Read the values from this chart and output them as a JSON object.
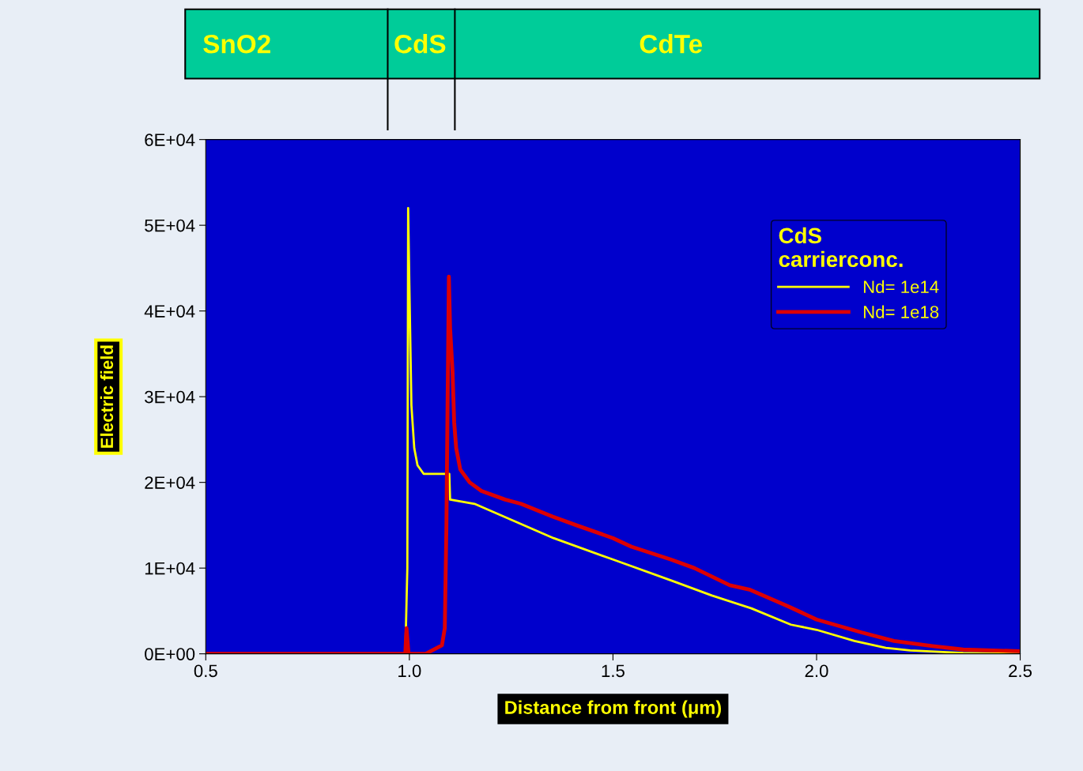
{
  "chart_data": {
    "type": "line",
    "xlabel": "Distance from front (μm)",
    "ylabel": "Electric field",
    "legend_title": "CdS\ncarrierconc.",
    "legend": "top right",
    "grid": false,
    "marker": "none",
    "line_style": "solid",
    "annotations": [
      "SnO2",
      "CdS",
      "CdTe"
    ],
    "xlim": [
      0.5,
      2.5
    ],
    "xticks": [
      {
        "value": 0.5,
        "label": "0.5"
      },
      {
        "value": 1.0,
        "label": "1.0"
      },
      {
        "value": 1.5,
        "label": "1.5"
      },
      {
        "value": 2.0,
        "label": "2.0"
      },
      {
        "value": 2.5,
        "label": "2.5"
      }
    ],
    "ylim": [
      0,
      60000
    ],
    "yticks": [
      {
        "value": 0,
        "label": "0E+00"
      },
      {
        "value": 10000,
        "label": "1E+04"
      },
      {
        "value": 20000,
        "label": "2E+04"
      },
      {
        "value": 30000,
        "label": "3E+04"
      },
      {
        "value": 40000,
        "label": "4E+04"
      },
      {
        "value": 50000,
        "label": "5E+04"
      },
      {
        "value": 60000,
        "label": "6E+04"
      }
    ],
    "series": [
      {
        "name": "Nd= 1e14",
        "color": "#ffff00",
        "x": [
          0.5,
          0.99,
          0.995,
          0.997,
          1.0,
          1.005,
          1.012,
          1.02,
          1.035,
          1.098,
          1.1,
          1.16,
          1.257,
          1.354,
          1.5,
          1.646,
          1.743,
          1.84,
          1.937,
          2.0,
          2.093,
          2.17,
          2.23,
          2.36,
          2.5
        ],
        "values": [
          0,
          0,
          10000,
          52000,
          43000,
          29000,
          24000,
          22000,
          21000,
          21000,
          18000,
          17500,
          15500,
          13500,
          11000,
          8500,
          6800,
          5300,
          3400,
          2800,
          1500,
          700,
          400,
          100,
          0
        ]
      },
      {
        "name": "Nd= 1e18",
        "color": "#dd0000",
        "x": [
          0.5,
          0.99,
          0.993,
          0.998,
          1.04,
          1.08,
          1.087,
          1.091,
          1.094,
          1.097,
          1.1,
          1.106,
          1.11,
          1.115,
          1.125,
          1.148,
          1.177,
          1.235,
          1.274,
          1.352,
          1.41,
          1.5,
          1.545,
          1.642,
          1.7,
          1.787,
          1.835,
          1.932,
          2.0,
          2.11,
          2.19,
          2.285,
          2.36,
          2.5
        ],
        "values": [
          0,
          0,
          3000,
          0,
          0,
          1000,
          3000,
          15000,
          30000,
          44000,
          38000,
          33000,
          27000,
          24000,
          21500,
          20000,
          19000,
          18000,
          17500,
          16000,
          15000,
          13500,
          12500,
          11000,
          10000,
          8000,
          7500,
          5500,
          4000,
          2500,
          1500,
          900,
          500,
          300
        ]
      }
    ]
  }
}
